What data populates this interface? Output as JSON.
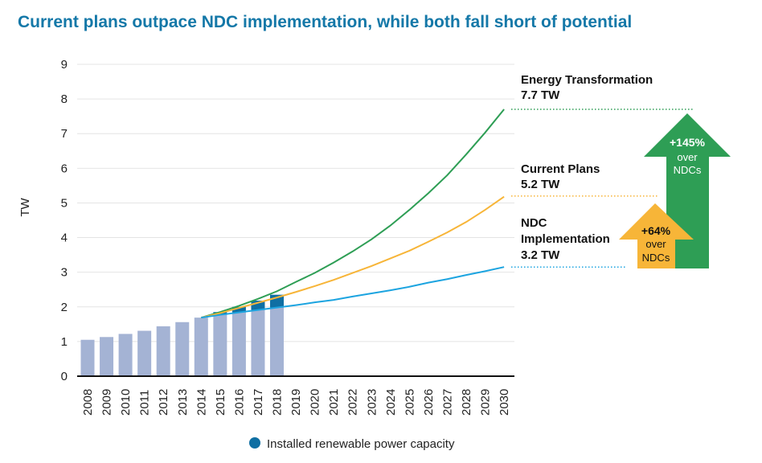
{
  "title": "Current plans outpace NDC implementation, while both fall short of potential",
  "chart_data": {
    "type": "bar+line",
    "ylabel": "TW",
    "ylim": [
      0,
      9
    ],
    "yticks": [
      "0",
      "1",
      "2",
      "3",
      "4",
      "5",
      "6",
      "7",
      "8",
      "9"
    ],
    "grid": true,
    "categories": [
      "2008",
      "2009",
      "2010",
      "2011",
      "2012",
      "2013",
      "2014",
      "2015",
      "2016",
      "2017",
      "2018",
      "2019",
      "2020",
      "2021",
      "2022",
      "2023",
      "2024",
      "2025",
      "2026",
      "2027",
      "2028",
      "2029",
      "2030"
    ],
    "bars": {
      "name": "Installed renewable power capacity",
      "values": [
        1.05,
        1.13,
        1.22,
        1.31,
        1.44,
        1.56,
        1.69,
        1.85,
        2.0,
        2.18,
        2.35
      ],
      "color": "#a4b3d4",
      "highlight_color": "#0f6fa3"
    },
    "series": [
      {
        "name": "Energy Transformation",
        "end_label": "7.7 TW",
        "color": "#2e9e55",
        "values": [
          null,
          null,
          null,
          null,
          null,
          null,
          1.69,
          1.85,
          2.03,
          2.23,
          2.45,
          2.72,
          2.98,
          3.28,
          3.6,
          3.95,
          4.35,
          4.8,
          5.28,
          5.8,
          6.4,
          7.03,
          7.7
        ]
      },
      {
        "name": "Current Plans",
        "end_label": "5.2 TW",
        "color": "#f7b538",
        "values": [
          null,
          null,
          null,
          null,
          null,
          null,
          1.69,
          1.82,
          1.97,
          2.12,
          2.27,
          2.43,
          2.6,
          2.78,
          2.98,
          3.18,
          3.4,
          3.62,
          3.88,
          4.15,
          4.45,
          4.8,
          5.18
        ]
      },
      {
        "name": "NDC Implementation",
        "name_lines": [
          "NDC",
          "Implementation"
        ],
        "end_label": "3.2 TW",
        "color": "#1ca4e0",
        "values": [
          null,
          null,
          null,
          null,
          null,
          null,
          1.69,
          1.77,
          1.84,
          1.91,
          1.98,
          2.05,
          2.13,
          2.2,
          2.3,
          2.39,
          2.48,
          2.58,
          2.7,
          2.8,
          2.92,
          3.03,
          3.15
        ]
      }
    ],
    "annotations": [
      {
        "value": "+145%",
        "text1": "over",
        "text2": "NDCs",
        "color": "#2e9e55"
      },
      {
        "value": "+64%",
        "text1": "over",
        "text2": "NDCs",
        "color": "#f7b538"
      }
    ],
    "legend": {
      "label": "Installed renewable power capacity",
      "color": "#0f6fa3",
      "placement": "bottom"
    }
  }
}
